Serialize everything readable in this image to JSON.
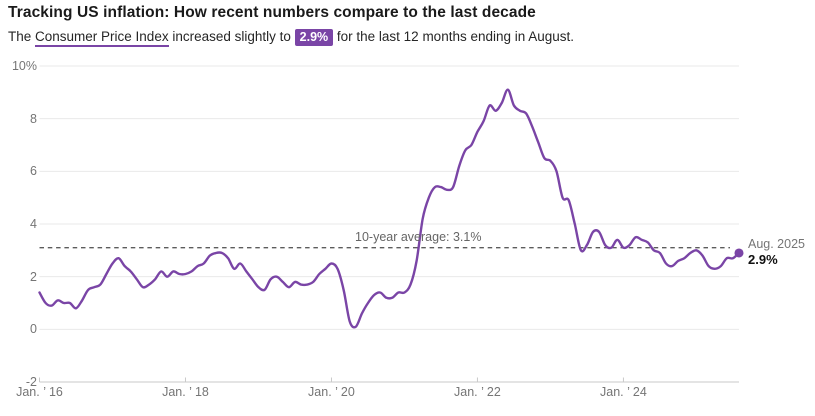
{
  "theme": {
    "purple": "#7a45a6",
    "grid": "#e9e9e9",
    "axis": "#c9c9c9",
    "tick_text": "#757575",
    "avg_line": "#5c5c5c"
  },
  "header": {
    "title": "Tracking US inflation: How recent numbers compare to the last decade",
    "subtitle_prefix": "The ",
    "subtitle_link": "Consumer Price Index",
    "subtitle_mid": " increased slightly to ",
    "subtitle_value": "2.9%",
    "subtitle_suffix": " for the last 12 months ending in August."
  },
  "chart_data": {
    "type": "line",
    "unit": "%",
    "x_monthly_start": "Jan 2016",
    "x_monthly_end": "Aug 2025",
    "ylim": [
      -2,
      10
    ],
    "grid": "horizontal",
    "legend_position": "none",
    "yticks": [
      {
        "value": 10,
        "label": "10%"
      },
      {
        "value": 8,
        "label": "8"
      },
      {
        "value": 6,
        "label": "6"
      },
      {
        "value": 4,
        "label": "4"
      },
      {
        "value": 2,
        "label": "2"
      },
      {
        "value": 0,
        "label": "0"
      },
      {
        "value": -2,
        "label": "-2"
      }
    ],
    "xticks": [
      {
        "month_index": 0,
        "label": "Jan. ’ 16"
      },
      {
        "month_index": 24,
        "label": "Jan. ’ 18"
      },
      {
        "month_index": 48,
        "label": "Jan. ’ 20"
      },
      {
        "month_index": 72,
        "label": "Jan. ’ 22"
      },
      {
        "month_index": 96,
        "label": "Jan. ’ 24"
      }
    ],
    "average_line": {
      "value": 3.1,
      "label": "10-year average: 3.1%"
    },
    "end_annotation": {
      "date_label": "Aug. 2025",
      "value_label": "2.9%",
      "value": 2.9
    },
    "series": [
      {
        "name": "Consumer Price Index, 12-month % change",
        "color": "#7a45a6",
        "values": [
          1.4,
          1.0,
          0.9,
          1.1,
          1.0,
          1.0,
          0.8,
          1.1,
          1.5,
          1.6,
          1.7,
          2.1,
          2.5,
          2.7,
          2.4,
          2.2,
          1.9,
          1.6,
          1.7,
          1.9,
          2.2,
          2.0,
          2.2,
          2.1,
          2.1,
          2.2,
          2.4,
          2.5,
          2.8,
          2.9,
          2.9,
          2.7,
          2.3,
          2.5,
          2.2,
          1.9,
          1.6,
          1.5,
          1.9,
          2.0,
          1.8,
          1.6,
          1.8,
          1.7,
          1.7,
          1.8,
          2.1,
          2.3,
          2.5,
          2.3,
          1.5,
          0.3,
          0.1,
          0.6,
          1.0,
          1.3,
          1.4,
          1.2,
          1.2,
          1.4,
          1.4,
          1.7,
          2.6,
          4.2,
          5.0,
          5.4,
          5.4,
          5.3,
          5.4,
          6.2,
          6.8,
          7.0,
          7.5,
          7.9,
          8.5,
          8.3,
          8.6,
          9.1,
          8.5,
          8.3,
          8.2,
          7.7,
          7.1,
          6.5,
          6.4,
          6.0,
          5.0,
          4.9,
          4.0,
          3.0,
          3.2,
          3.7,
          3.7,
          3.2,
          3.1,
          3.4,
          3.1,
          3.2,
          3.5,
          3.4,
          3.3,
          3.0,
          2.9,
          2.5,
          2.4,
          2.6,
          2.7,
          2.9,
          3.0,
          2.8,
          2.4,
          2.3,
          2.4,
          2.7,
          2.7,
          2.9
        ]
      }
    ]
  }
}
